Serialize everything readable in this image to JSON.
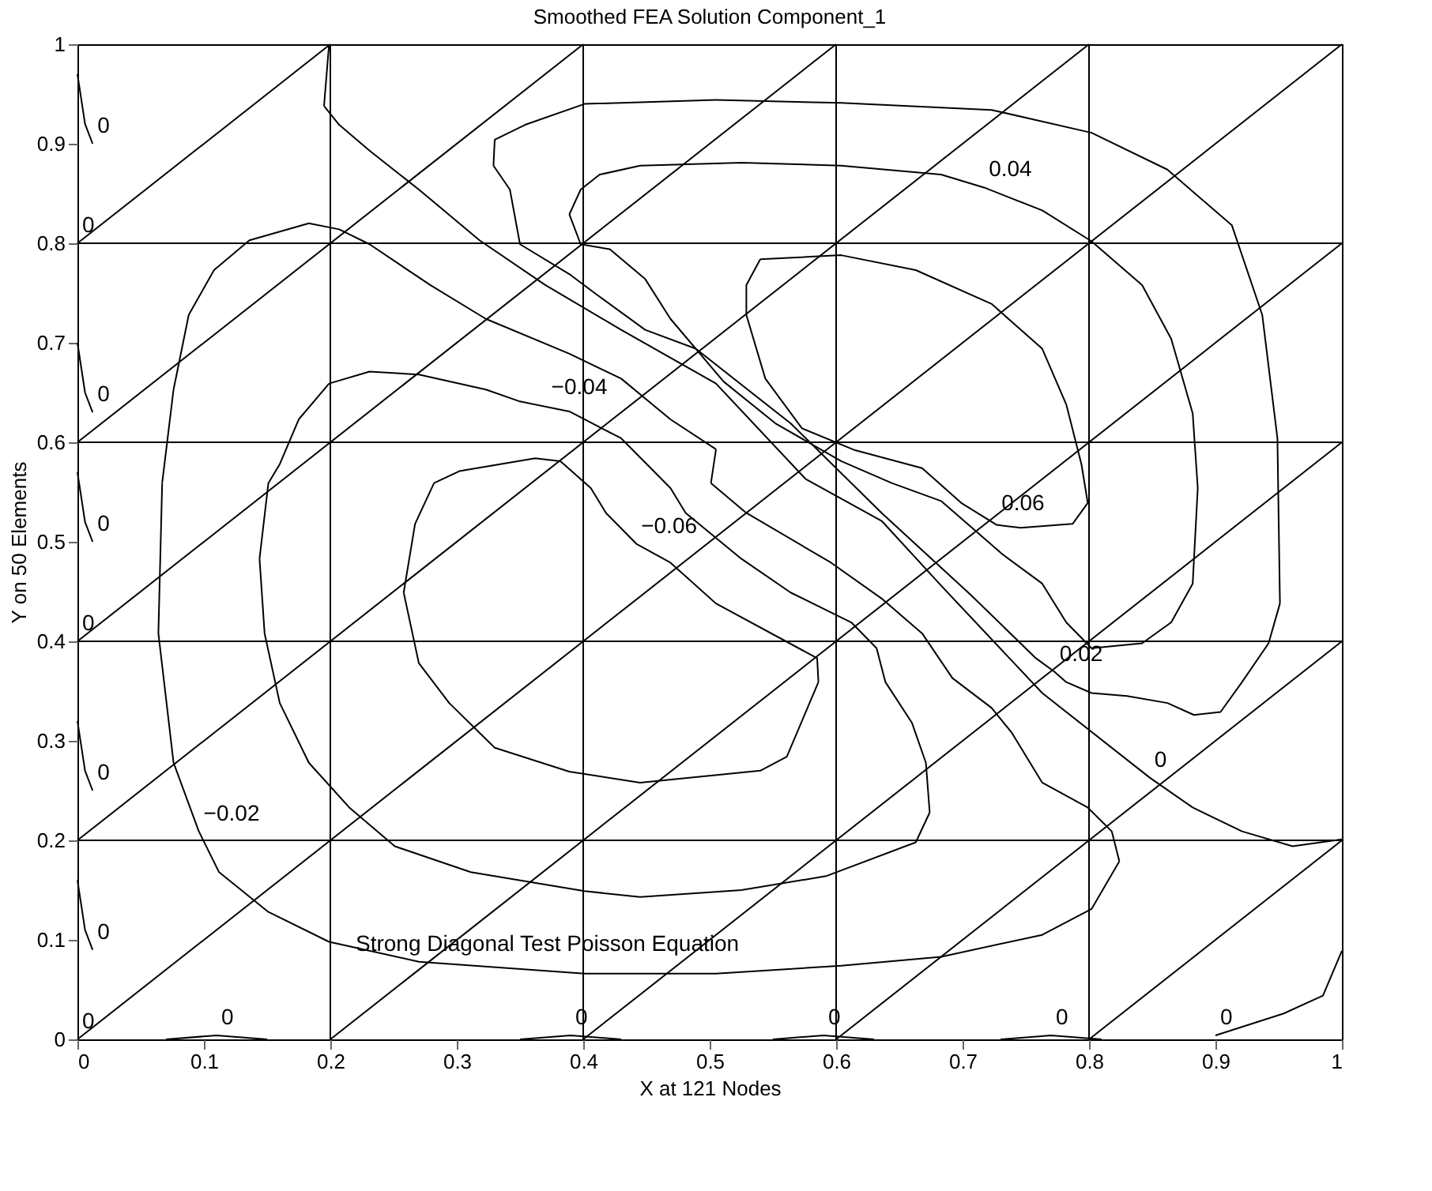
{
  "chart_data": {
    "type": "line",
    "title": "Smoothed FEA Solution Component_1",
    "xlabel": "X at 121 Nodes",
    "ylabel": "Y on 50 Elements",
    "xlim": [
      0,
      1
    ],
    "ylim": [
      0,
      1
    ],
    "xticks": [
      0,
      0.1,
      0.2,
      0.3,
      0.4,
      0.5,
      0.6,
      0.7,
      0.8,
      0.9,
      1
    ],
    "yticks": [
      0,
      0.1,
      0.2,
      0.3,
      0.4,
      0.5,
      0.6,
      0.7,
      0.8,
      0.9,
      1
    ],
    "grid": false,
    "line_style": "solid",
    "marker": "none",
    "series": [
      {
        "color": "#000000",
        "x": [
          0.2,
          0.2
        ],
        "values": [
          0,
          1
        ]
      },
      {
        "color": "#000000",
        "x": [
          0.4,
          0.4
        ],
        "values": [
          0,
          1
        ]
      },
      {
        "color": "#000000",
        "x": [
          0.6,
          0.6
        ],
        "values": [
          0,
          1
        ]
      },
      {
        "color": "#000000",
        "x": [
          0.8,
          0.8
        ],
        "values": [
          0,
          1
        ]
      },
      {
        "color": "#000000",
        "x": [
          0,
          1
        ],
        "values": [
          0.2,
          0.2
        ]
      },
      {
        "color": "#000000",
        "x": [
          0,
          1
        ],
        "values": [
          0.4,
          0.4
        ]
      },
      {
        "color": "#000000",
        "x": [
          0,
          1
        ],
        "values": [
          0.6,
          0.6
        ]
      },
      {
        "color": "#000000",
        "x": [
          0,
          1
        ],
        "values": [
          0.8,
          0.8
        ]
      },
      {
        "color": "#000000",
        "x": [
          0,
          0.2
        ],
        "values": [
          0.8,
          1
        ]
      },
      {
        "color": "#000000",
        "x": [
          0,
          0.4
        ],
        "values": [
          0.6,
          1
        ]
      },
      {
        "color": "#000000",
        "x": [
          0,
          0.6
        ],
        "values": [
          0.4,
          1
        ]
      },
      {
        "color": "#000000",
        "x": [
          0,
          0.8
        ],
        "values": [
          0.2,
          1
        ]
      },
      {
        "color": "#000000",
        "x": [
          0,
          1
        ],
        "values": [
          0,
          1
        ]
      },
      {
        "color": "#000000",
        "x": [
          0.2,
          1
        ],
        "values": [
          0,
          0.8
        ]
      },
      {
        "color": "#000000",
        "x": [
          0.4,
          1
        ],
        "values": [
          0,
          0.6
        ]
      },
      {
        "color": "#000000",
        "x": [
          0.6,
          1
        ],
        "values": [
          0,
          0.4
        ]
      },
      {
        "color": "#000000",
        "x": [
          0.8,
          1
        ],
        "values": [
          0,
          0.2
        ]
      },
      {
        "color": "#000000",
        "x": [
          0.067,
          0.064,
          0.076,
          0.096,
          0.112,
          0.151,
          0.199,
          0.27,
          0.401,
          0.505,
          0.604,
          0.683,
          0.763,
          0.802,
          0.824,
          0.818,
          0.799,
          0.763,
          0.739,
          0.723,
          0.692,
          0.668,
          0.636,
          0.596,
          0.529,
          0.501,
          0.505,
          0.469,
          0.43,
          0.389,
          0.323,
          0.279,
          0.231,
          0.207,
          0.183,
          0.136,
          0.108,
          0.088,
          0.076,
          0.067
        ],
        "values": [
          0.559,
          0.408,
          0.278,
          0.209,
          0.168,
          0.128,
          0.098,
          0.078,
          0.066,
          0.066,
          0.074,
          0.083,
          0.105,
          0.131,
          0.179,
          0.209,
          0.233,
          0.258,
          0.308,
          0.333,
          0.363,
          0.408,
          0.443,
          0.479,
          0.529,
          0.559,
          0.593,
          0.623,
          0.664,
          0.689,
          0.724,
          0.758,
          0.799,
          0.814,
          0.82,
          0.803,
          0.773,
          0.728,
          0.653,
          0.559
        ]
      },
      {
        "color": "#000000",
        "x": [
          0.199,
          0.231,
          0.27,
          0.323,
          0.35,
          0.389,
          0.43,
          0.469,
          0.481,
          0.525,
          0.564,
          0.612,
          0.632,
          0.639,
          0.66,
          0.671,
          0.674,
          0.663,
          0.592,
          0.525,
          0.445,
          0.401,
          0.311,
          0.251,
          0.215,
          0.183,
          0.16,
          0.148,
          0.144,
          0.151,
          0.16,
          0.175,
          0.199
        ],
        "values": [
          0.659,
          0.671,
          0.668,
          0.653,
          0.641,
          0.631,
          0.604,
          0.554,
          0.529,
          0.483,
          0.449,
          0.419,
          0.393,
          0.359,
          0.318,
          0.278,
          0.228,
          0.198,
          0.164,
          0.15,
          0.143,
          0.149,
          0.168,
          0.194,
          0.233,
          0.278,
          0.338,
          0.408,
          0.483,
          0.559,
          0.578,
          0.623,
          0.659
        ]
      },
      {
        "color": "#000000",
        "x": [
          0.282,
          0.302,
          0.362,
          0.382,
          0.406,
          0.418,
          0.442,
          0.469,
          0.505,
          0.585,
          0.586,
          0.561,
          0.54,
          0.445,
          0.389,
          0.33,
          0.294,
          0.27,
          0.258,
          0.267,
          0.282
        ],
        "values": [
          0.559,
          0.571,
          0.584,
          0.581,
          0.554,
          0.529,
          0.498,
          0.479,
          0.438,
          0.383,
          0.359,
          0.284,
          0.27,
          0.258,
          0.269,
          0.293,
          0.338,
          0.378,
          0.449,
          0.518,
          0.559
        ]
      },
      {
        "color": "#000000",
        "x": [
          0.199,
          0.195,
          0.207,
          0.231,
          0.27,
          0.318,
          0.37,
          0.43,
          0.505,
          0.576,
          0.636,
          0.683,
          0.763,
          0.848,
          0.882,
          0.921,
          0.961,
          1
        ],
        "values": [
          1,
          0.938,
          0.919,
          0.893,
          0.854,
          0.803,
          0.758,
          0.713,
          0.659,
          0.563,
          0.521,
          0.456,
          0.348,
          0.263,
          0.233,
          0.209,
          0.194,
          0.201
        ]
      },
      {
        "color": "#000000",
        "x": [
          0.505,
          0.604,
          0.723,
          0.802,
          0.862,
          0.913,
          0.937,
          0.949,
          0.951,
          0.942,
          0.921,
          0.904,
          0.883,
          0.862,
          0.83,
          0.802,
          0.782,
          0.773,
          0.758,
          0.707,
          0.636,
          0.564,
          0.489,
          0.449,
          0.41,
          0.389,
          0.35,
          0.342,
          0.329,
          0.33,
          0.354,
          0.401,
          0.505
        ],
        "values": [
          0.944,
          0.941,
          0.934,
          0.911,
          0.874,
          0.818,
          0.728,
          0.604,
          0.438,
          0.398,
          0.359,
          0.329,
          0.326,
          0.338,
          0.345,
          0.348,
          0.359,
          0.369,
          0.383,
          0.446,
          0.529,
          0.619,
          0.694,
          0.713,
          0.749,
          0.769,
          0.799,
          0.854,
          0.878,
          0.904,
          0.919,
          0.94,
          0.944
        ]
      },
      {
        "color": "#000000",
        "x": [
          0.445,
          0.525,
          0.604,
          0.683,
          0.717,
          0.763,
          0.802,
          0.842,
          0.865,
          0.882,
          0.886,
          0.882,
          0.865,
          0.842,
          0.802,
          0.782,
          0.763,
          0.731,
          0.683,
          0.644,
          0.604,
          0.552,
          0.511,
          0.469,
          0.449,
          0.421,
          0.398,
          0.389,
          0.398,
          0.413,
          0.445
        ],
        "values": [
          0.878,
          0.881,
          0.878,
          0.869,
          0.856,
          0.833,
          0.802,
          0.758,
          0.704,
          0.629,
          0.554,
          0.458,
          0.419,
          0.398,
          0.393,
          0.419,
          0.458,
          0.488,
          0.541,
          0.559,
          0.581,
          0.619,
          0.661,
          0.724,
          0.764,
          0.794,
          0.799,
          0.829,
          0.854,
          0.869,
          0.878
        ]
      },
      {
        "color": "#000000",
        "x": [
          0,
          0.006,
          0.012
        ],
        "values": [
          0.97,
          0.92,
          0.9
        ]
      },
      {
        "color": "#000000",
        "x": [
          0,
          0.006,
          0.012
        ],
        "values": [
          0.7,
          0.65,
          0.63
        ]
      },
      {
        "color": "#000000",
        "x": [
          0,
          0.006,
          0.012
        ],
        "values": [
          0.57,
          0.52,
          0.5
        ]
      },
      {
        "color": "#000000",
        "x": [
          0,
          0.006,
          0.012
        ],
        "values": [
          0.32,
          0.27,
          0.25
        ]
      },
      {
        "color": "#000000",
        "x": [
          0,
          0.006,
          0.012
        ],
        "values": [
          0.16,
          0.11,
          0.09
        ]
      },
      {
        "color": "#000000",
        "x": [
          0.07,
          0.11,
          0.15
        ],
        "values": [
          0,
          0.004,
          0
        ]
      },
      {
        "color": "#000000",
        "x": [
          0.35,
          0.39,
          0.43
        ],
        "values": [
          0,
          0.004,
          0
        ]
      },
      {
        "color": "#000000",
        "x": [
          0.55,
          0.59,
          0.63
        ],
        "values": [
          0,
          0.004,
          0
        ]
      },
      {
        "color": "#000000",
        "x": [
          0.73,
          0.77,
          0.81
        ],
        "values": [
          0,
          0.004,
          0
        ]
      },
      {
        "color": "#000000",
        "x": [
          0.9,
          0.954,
          0.985,
          1
        ],
        "values": [
          0.004,
          0.026,
          0.044,
          0.089
        ]
      },
      {
        "color": "#000000",
        "x": [
          0.54,
          0.604,
          0.663,
          0.723,
          0.763,
          0.782,
          0.794,
          0.799,
          0.787,
          0.746,
          0.727,
          0.699,
          0.668,
          0.615,
          0.573,
          0.544,
          0.529,
          0.529,
          0.54
        ],
        "values": [
          0.784,
          0.788,
          0.773,
          0.739,
          0.694,
          0.638,
          0.578,
          0.539,
          0.518,
          0.514,
          0.517,
          0.539,
          0.574,
          0.592,
          0.614,
          0.664,
          0.728,
          0.758,
          0.784
        ]
      }
    ],
    "annotations": [
      {
        "text": "−0.04",
        "x": 0.371,
        "y": 0.637
      },
      {
        "text": "−0.06",
        "x": 0.442,
        "y": 0.498
      },
      {
        "text": "0.04",
        "x": 0.717,
        "y": 0.856
      },
      {
        "text": "0.06",
        "x": 0.727,
        "y": 0.521
      },
      {
        "text": "0.02",
        "x": 0.773,
        "y": 0.369
      },
      {
        "text": "0",
        "x": 0.848,
        "y": 0.263
      },
      {
        "text": "−0.02",
        "x": 0.096,
        "y": 0.209
      },
      {
        "text": "0",
        "x": 0.012,
        "y": 0.9
      },
      {
        "text": "0",
        "x": 0,
        "y": 0.8
      },
      {
        "text": "0",
        "x": 0.012,
        "y": 0.63
      },
      {
        "text": "0",
        "x": 0.012,
        "y": 0.5
      },
      {
        "text": "0",
        "x": 0,
        "y": 0.4
      },
      {
        "text": "0",
        "x": 0.012,
        "y": 0.25
      },
      {
        "text": "0",
        "x": 0.012,
        "y": 0.09
      },
      {
        "text": "0",
        "x": 0,
        "y": 0
      },
      {
        "text": "0",
        "x": 0.11,
        "y": 0.004
      },
      {
        "text": "0",
        "x": 0.39,
        "y": 0.004
      },
      {
        "text": "0",
        "x": 0.59,
        "y": 0.004
      },
      {
        "text": "0",
        "x": 0.77,
        "y": 0.004
      },
      {
        "text": "0",
        "x": 0.9,
        "y": 0.004
      },
      "Strong Diagonal Test Poisson Equation"
    ]
  }
}
